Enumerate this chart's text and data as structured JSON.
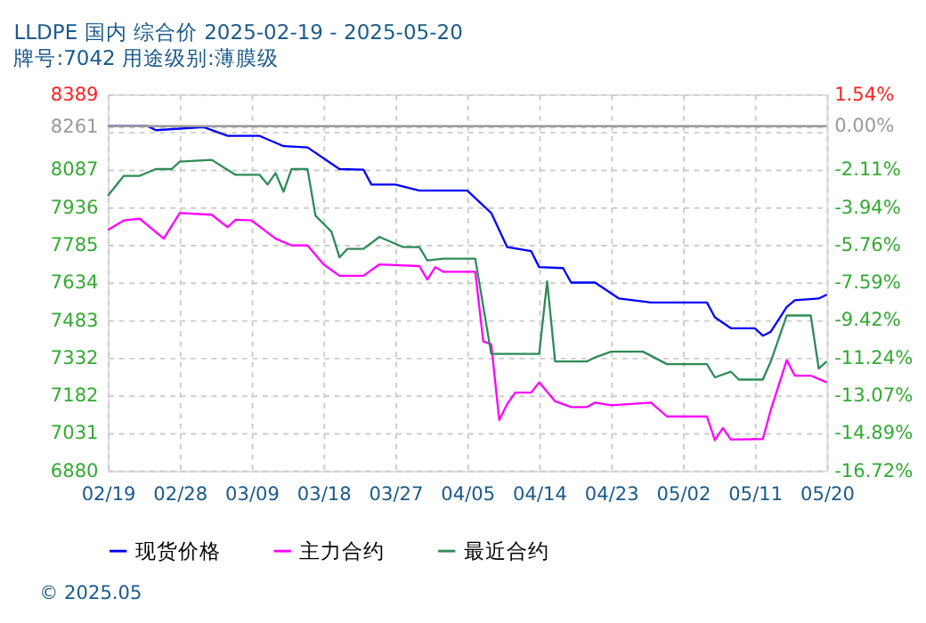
{
  "chart_data": {
    "type": "line",
    "title": "LLDPE 国内 综合价 2025-02-19 - 2025-05-20",
    "subtitle": "牌号:7042 用途级别:薄膜级",
    "annotations": [
      "© 2025.05"
    ],
    "xlim": [
      "2025-02-19",
      "2025-05-20"
    ],
    "xticks": [
      {
        "value": "2025-02-19",
        "label": "02/19"
      },
      {
        "value": "2025-02-28",
        "label": "02/28"
      },
      {
        "value": "2025-03-09",
        "label": "03/09"
      },
      {
        "value": "2025-03-18",
        "label": "03/18"
      },
      {
        "value": "2025-03-27",
        "label": "03/27"
      },
      {
        "value": "2025-04-05",
        "label": "04/05"
      },
      {
        "value": "2025-04-14",
        "label": "04/14"
      },
      {
        "value": "2025-04-23",
        "label": "04/23"
      },
      {
        "value": "2025-05-02",
        "label": "05/02"
      },
      {
        "value": "2025-05-11",
        "label": "05/11"
      },
      {
        "value": "2025-05-20",
        "label": "05/20"
      }
    ],
    "ylim": [
      6880,
      8389
    ],
    "yticks": [
      6880,
      7031,
      7182,
      7332,
      7483,
      7634,
      7785,
      7936,
      8087,
      {
        "value": 8238,
        "label": null
      },
      8261,
      8389
    ],
    "y2lim": [
      -16.72,
      1.54
    ],
    "y2ticks": [
      {
        "value": -16.72,
        "label": "-16.72%"
      },
      {
        "value": -14.89,
        "label": "-14.89%"
      },
      {
        "value": -13.07,
        "label": "-13.07%"
      },
      {
        "value": -11.24,
        "label": "-11.24%"
      },
      {
        "value": -9.42,
        "label": "-9.42%"
      },
      {
        "value": -7.59,
        "label": "-7.59%"
      },
      {
        "value": -5.76,
        "label": "-5.76%"
      },
      {
        "value": -3.94,
        "label": "-3.94%"
      },
      {
        "value": -2.11,
        "label": "-2.11%"
      },
      {
        "value": 0,
        "label": "0.00%"
      },
      {
        "value": 1.54,
        "label": "1.54%"
      }
    ],
    "ref_lines": [
      {
        "axis": "y",
        "value": 8261,
        "color": "#999999"
      }
    ],
    "grid": true,
    "legend": "bottom",
    "marker": "none",
    "line_style": "solid",
    "series": [
      {
        "name": "现货价格",
        "color": "#0000ff",
        "x": [
          "2025-02-19",
          "2025-02-24",
          "2025-02-25",
          "2025-03-03",
          "2025-03-06",
          "2025-03-10",
          "2025-03-13",
          "2025-03-16",
          "2025-03-20",
          "2025-03-23",
          "2025-03-24",
          "2025-03-27",
          "2025-03-30",
          "2025-04-05",
          "2025-04-08",
          "2025-04-10",
          "2025-04-13",
          "2025-04-14",
          "2025-04-17",
          "2025-04-18",
          "2025-04-21",
          "2025-04-24",
          "2025-04-28",
          "2025-05-05",
          "2025-05-06",
          "2025-05-08",
          "2025-05-11",
          "2025-05-12",
          "2025-05-13",
          "2025-05-15",
          "2025-05-16",
          "2025-05-19",
          "2025-05-20"
        ],
        "values": [
          8261,
          8261,
          8245,
          8257,
          8222,
          8222,
          8181,
          8176,
          8089,
          8087,
          8027,
          8027,
          8003,
          8003,
          7913,
          7776,
          7760,
          7696,
          7692,
          7634,
          7634,
          7570,
          7554,
          7554,
          7495,
          7451,
          7451,
          7421,
          7437,
          7536,
          7563,
          7570,
          7586
        ]
      },
      {
        "name": "主力合约",
        "color": "#ff00ff",
        "x": [
          "2025-02-19",
          "2025-02-21",
          "2025-02-23",
          "2025-02-26",
          "2025-02-28",
          "2025-03-04",
          "2025-03-06",
          "2025-03-07",
          "2025-03-09",
          "2025-03-12",
          "2025-03-14",
          "2025-03-16",
          "2025-03-18",
          "2025-03-20",
          "2025-03-23",
          "2025-03-25",
          "2025-03-30",
          "2025-03-31",
          "2025-04-01",
          "2025-04-02",
          "2025-04-06",
          "2025-04-07",
          "2025-04-08",
          "2025-04-09",
          "2025-04-10",
          "2025-04-11",
          "2025-04-13",
          "2025-04-14",
          "2025-04-16",
          "2025-04-18",
          "2025-04-20",
          "2025-04-21",
          "2025-04-23",
          "2025-04-28",
          "2025-04-30",
          "2025-05-05",
          "2025-05-06",
          "2025-05-07",
          "2025-05-08",
          "2025-05-12",
          "2025-05-13",
          "2025-05-15",
          "2025-05-16",
          "2025-05-18",
          "2025-05-20"
        ],
        "values": [
          7845,
          7883,
          7890,
          7810,
          7913,
          7906,
          7856,
          7886,
          7883,
          7810,
          7783,
          7783,
          7707,
          7661,
          7661,
          7707,
          7700,
          7646,
          7696,
          7677,
          7677,
          7398,
          7387,
          7083,
          7147,
          7193,
          7193,
          7234,
          7158,
          7135,
          7135,
          7153,
          7142,
          7153,
          7097,
          7097,
          7002,
          7051,
          7005,
          7007,
          7124,
          7323,
          7261,
          7261,
          7234
        ]
      },
      {
        "name": "最近合约",
        "color": "#2e8b57",
        "x": [
          "2025-02-19",
          "2025-02-21",
          "2025-02-23",
          "2025-02-25",
          "2025-02-27",
          "2025-02-28",
          "2025-03-04",
          "2025-03-07",
          "2025-03-10",
          "2025-03-11",
          "2025-03-12",
          "2025-03-13",
          "2025-03-14",
          "2025-03-16",
          "2025-03-17",
          "2025-03-19",
          "2025-03-20",
          "2025-03-21",
          "2025-03-23",
          "2025-03-25",
          "2025-03-28",
          "2025-03-30",
          "2025-03-31",
          "2025-04-02",
          "2025-04-06",
          "2025-04-08",
          "2025-04-14",
          "2025-04-15",
          "2025-04-16",
          "2025-04-20",
          "2025-04-21",
          "2025-04-23",
          "2025-04-27",
          "2025-04-30",
          "2025-05-05",
          "2025-05-06",
          "2025-05-08",
          "2025-05-09",
          "2025-05-12",
          "2025-05-13",
          "2025-05-15",
          "2025-05-18",
          "2025-05-19",
          "2025-05-20"
        ],
        "values": [
          7982,
          8062,
          8062,
          8089,
          8089,
          8119,
          8126,
          8066,
          8066,
          8027,
          8073,
          7998,
          8089,
          8089,
          7902,
          7838,
          7735,
          7769,
          7769,
          7817,
          7776,
          7776,
          7723,
          7730,
          7730,
          7348,
          7348,
          7639,
          7318,
          7318,
          7334,
          7357,
          7357,
          7307,
          7307,
          7254,
          7277,
          7245,
          7245,
          7318,
          7502,
          7502,
          7289,
          7318
        ]
      }
    ]
  }
}
